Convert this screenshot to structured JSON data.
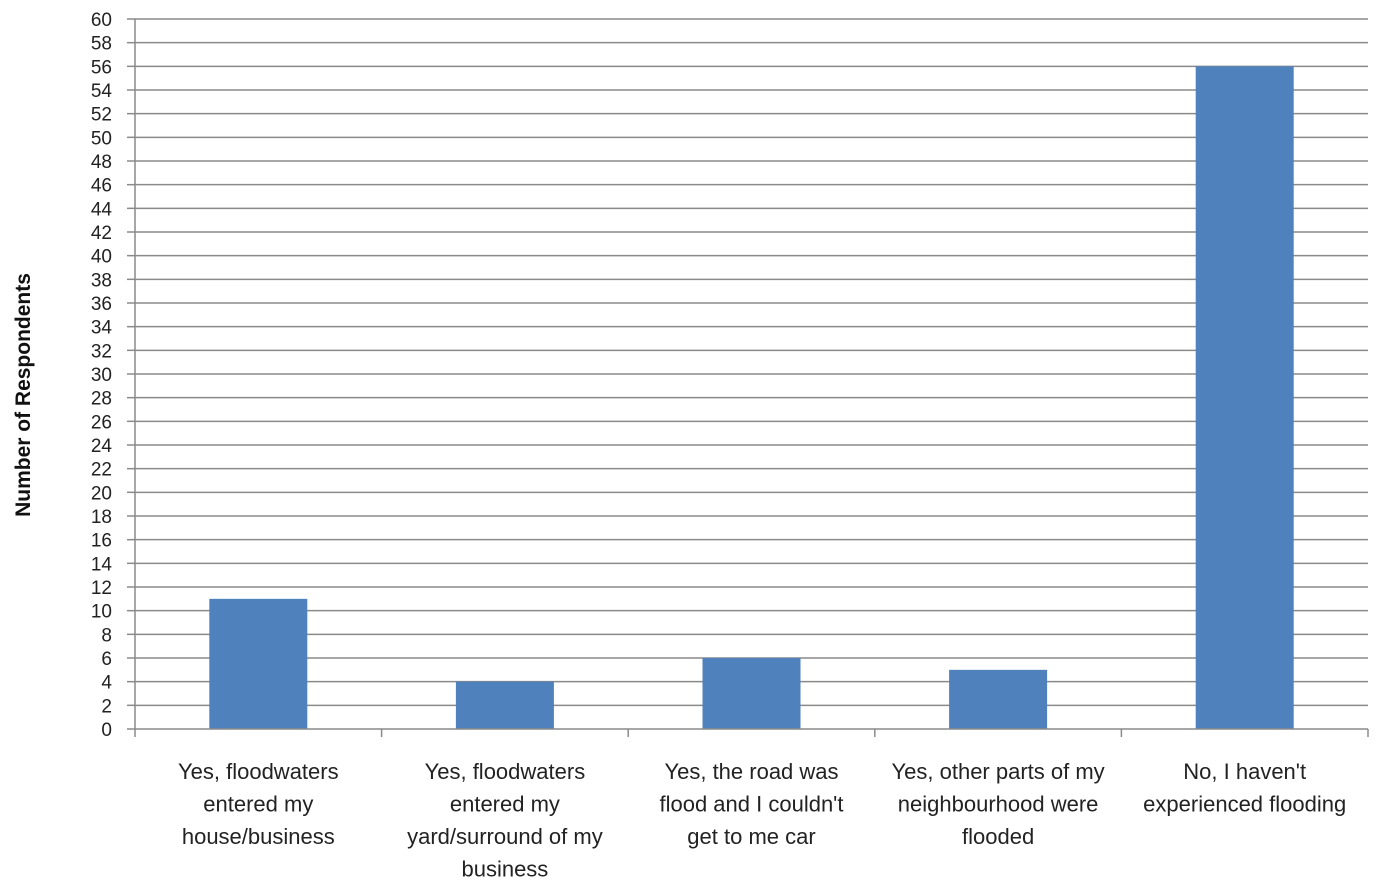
{
  "chart_data": {
    "type": "bar",
    "title": "",
    "xlabel": "",
    "ylabel": "Number of Respondents",
    "ylim": [
      0,
      60
    ],
    "ytick_step": 2,
    "grid": true,
    "bar_color": "#4f81bd",
    "categories": [
      [
        "Yes, floodwaters",
        "entered my",
        "house/business"
      ],
      [
        "Yes, floodwaters",
        "entered my",
        "yard/surround of my",
        "business"
      ],
      [
        "Yes, the road was",
        "flood and I couldn't",
        "get to me car"
      ],
      [
        "Yes, other parts of my",
        "neighbourhood were",
        "flooded"
      ],
      [
        "No, I haven't",
        "experienced flooding"
      ]
    ],
    "values": [
      11,
      4,
      6,
      5,
      56
    ]
  }
}
